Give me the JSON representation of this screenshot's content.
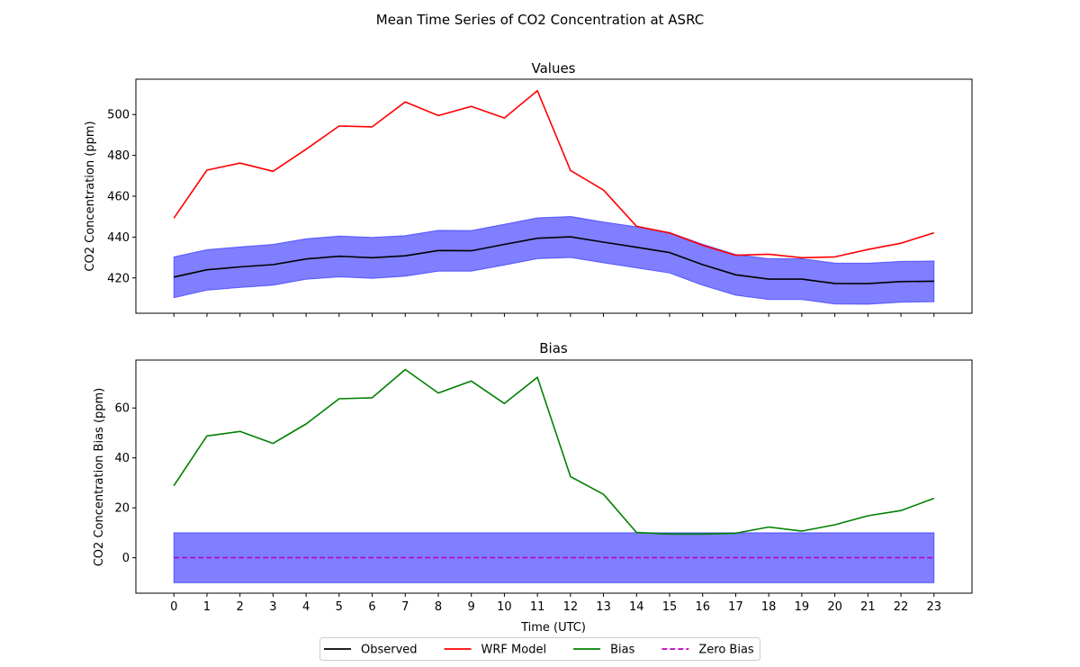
{
  "chart_data": {
    "suptitle": "Mean Time Series of CO2 Concentration at ASRC",
    "xlabel": "Time (UTC)",
    "x": [
      0,
      1,
      2,
      3,
      4,
      5,
      6,
      7,
      8,
      9,
      10,
      11,
      12,
      13,
      14,
      15,
      16,
      17,
      18,
      19,
      20,
      21,
      22,
      23
    ],
    "xlim": [
      -1.15,
      24.15
    ],
    "legend_placement": "bottom-center",
    "grid": false,
    "panels": [
      {
        "type": "line",
        "title": "Values",
        "ylabel": "CO2 Concentration (ppm)",
        "ylim": [
          402.7,
          517.3
        ],
        "yticks": [
          420,
          440,
          460,
          480,
          500
        ],
        "band": {
          "lower": [
            410.3,
            414,
            415.3,
            416.4,
            419.3,
            420.5,
            419.8,
            420.8,
            423.3,
            423.3,
            426.3,
            429.4,
            430,
            427.4,
            424.9,
            422.4,
            416.4,
            411.5,
            409.4,
            409.4,
            407.2,
            407.1,
            408.1,
            408.3
          ],
          "upper": [
            430.3,
            433.8,
            435.2,
            436.4,
            439.2,
            440.5,
            439.8,
            440.7,
            443.3,
            443.2,
            446.3,
            449.4,
            450.1,
            447.4,
            445,
            442.3,
            436.5,
            431.5,
            429.4,
            429.4,
            427.3,
            427.2,
            428.1,
            428.3
          ],
          "color": "#0000ff"
        },
        "series": [
          {
            "name": "Observed",
            "color": "#000000",
            "values": [
              420.4,
              424,
              425.4,
              426.5,
              429.3,
              430.6,
              429.9,
              430.8,
              433.4,
              433.3,
              436.4,
              439.4,
              440.1,
              437.5,
              435,
              432.4,
              426.5,
              421.5,
              419.4,
              419.4,
              417.3,
              417.2,
              418.2,
              418.4
            ]
          },
          {
            "name": "WRF Model",
            "color": "#ff0000",
            "values": [
              449.3,
              472.8,
              476.2,
              472.2,
              483,
              494.4,
              494,
              506.2,
              499.5,
              504,
              498.3,
              511.7,
              472.6,
              463,
              445.3,
              442,
              436,
              431.1,
              431.6,
              429.9,
              430.3,
              433.9,
              437,
              442.1
            ]
          }
        ]
      },
      {
        "type": "line",
        "title": "Bias",
        "ylabel": "CO2 Concentration Bias (ppm)",
        "ylim": [
          -14.2,
          79.2
        ],
        "yticks": [
          0,
          20,
          40,
          60
        ],
        "band": {
          "lower": -10,
          "upper": 10,
          "color": "#0000ff"
        },
        "series": [
          {
            "name": "Bias",
            "color": "#008000",
            "values": [
              28.9,
              48.8,
              50.6,
              45.8,
              53.6,
              63.7,
              64.1,
              75.4,
              66,
              70.8,
              61.8,
              72.3,
              32.5,
              25.4,
              10.1,
              9.5,
              9.5,
              9.8,
              12.3,
              10.7,
              13.2,
              16.8,
              18.9,
              23.8
            ]
          },
          {
            "name": "Zero Bias",
            "color": "#bf00bf",
            "dashed": true,
            "values": [
              0,
              0,
              0,
              0,
              0,
              0,
              0,
              0,
              0,
              0,
              0,
              0,
              0,
              0,
              0,
              0,
              0,
              0,
              0,
              0,
              0,
              0,
              0,
              0
            ]
          }
        ]
      }
    ],
    "legend": [
      {
        "label": "Observed",
        "color": "#000000",
        "dashed": false
      },
      {
        "label": "WRF Model",
        "color": "#ff0000",
        "dashed": false
      },
      {
        "label": "Bias",
        "color": "#008000",
        "dashed": false
      },
      {
        "label": "Zero Bias",
        "color": "#bf00bf",
        "dashed": true
      }
    ]
  }
}
